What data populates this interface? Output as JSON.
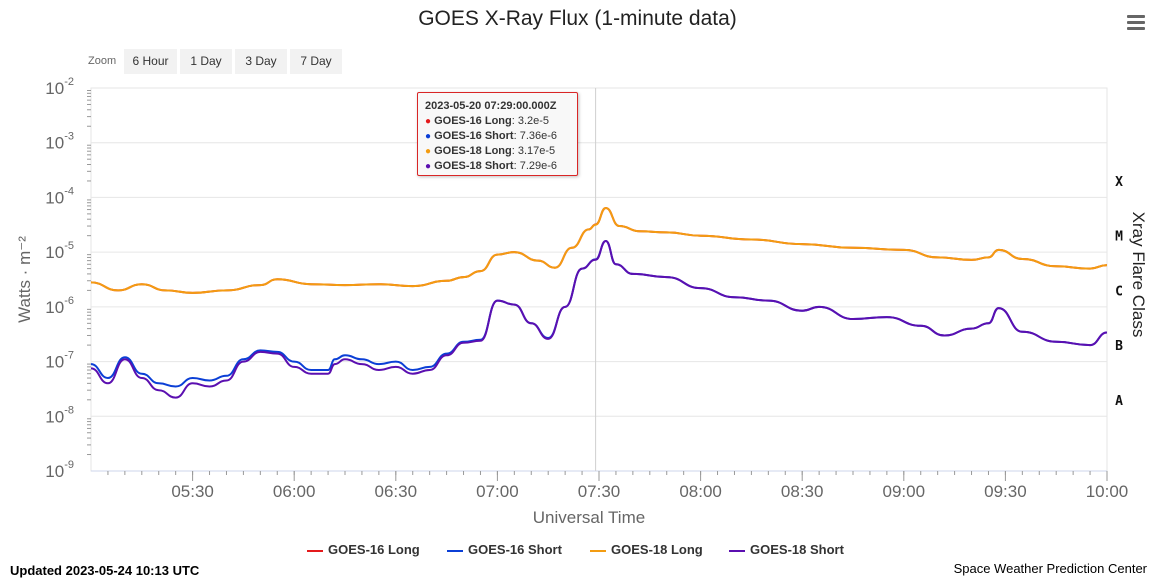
{
  "header": {
    "title": "GOES X-Ray Flux (1-minute data)",
    "menu_icon": "hamburger-menu-icon"
  },
  "zoom": {
    "label": "Zoom",
    "buttons": [
      "6 Hour",
      "1 Day",
      "3 Day",
      "7 Day"
    ]
  },
  "tooltip": {
    "title": "2023-05-20 07:29:00.000Z",
    "rows": [
      {
        "name": "GOES-16 Long",
        "value": "3.2e-5",
        "color": "#e41a1c"
      },
      {
        "name": "GOES-16 Short",
        "value": "7.36e-6",
        "color": "#0b3fd6"
      },
      {
        "name": "GOES-18 Long",
        "value": "3.17e-5",
        "color": "#f39c12"
      },
      {
        "name": "GOES-18 Short",
        "value": "7.29e-6",
        "color": "#5b0fb0"
      }
    ]
  },
  "footer": {
    "updated": "Updated 2023-05-24 10:13 UTC",
    "credit": "Space Weather Prediction Center"
  },
  "chart_data": {
    "type": "line",
    "title": "GOES X-Ray Flux (1-minute data)",
    "xlabel": "Universal Time",
    "ylabel": "Watts · m⁻²",
    "y2label": "Xray Flare Class",
    "yscale": "log",
    "ylim": [
      1e-09,
      0.01
    ],
    "xlim": [
      "05:00",
      "10:00"
    ],
    "x_ticks": [
      "05:30",
      "06:00",
      "06:30",
      "07:00",
      "07:30",
      "08:00",
      "08:30",
      "09:00",
      "09:30",
      "10:00"
    ],
    "y_ticks": [
      {
        "base": "10",
        "exp": "-9",
        "value": 1e-09
      },
      {
        "base": "10",
        "exp": "-8",
        "value": 1e-08
      },
      {
        "base": "10",
        "exp": "-7",
        "value": 1e-07
      },
      {
        "base": "10",
        "exp": "-6",
        "value": 1e-06
      },
      {
        "base": "10",
        "exp": "-5",
        "value": 1e-05
      },
      {
        "base": "10",
        "exp": "-4",
        "value": 0.0001
      },
      {
        "base": "10",
        "exp": "-3",
        "value": 0.001
      },
      {
        "base": "10",
        "exp": "-2",
        "value": 0.01
      }
    ],
    "flare_classes": [
      {
        "label": "X",
        "value": 0.0002
      },
      {
        "label": "M",
        "value": 2e-05
      },
      {
        "label": "C",
        "value": 2e-06
      },
      {
        "label": "B",
        "value": 2e-07
      },
      {
        "label": "A",
        "value": 2e-08
      }
    ],
    "crosshair_x": "07:29",
    "grid": true,
    "legend_position": "bottom-center",
    "series": [
      {
        "name": "GOES-16 Long",
        "color": "#e41a1c",
        "points": [
          [
            "05:00",
            2.8e-06
          ],
          [
            "05:08",
            2e-06
          ],
          [
            "05:15",
            2.6e-06
          ],
          [
            "05:22",
            2e-06
          ],
          [
            "05:30",
            1.8e-06
          ],
          [
            "05:40",
            2e-06
          ],
          [
            "05:50",
            2.5e-06
          ],
          [
            "05:55",
            3.2e-06
          ],
          [
            "06:05",
            2.6e-06
          ],
          [
            "06:15",
            2.5e-06
          ],
          [
            "06:25",
            2.6e-06
          ],
          [
            "06:35",
            2.4e-06
          ],
          [
            "06:45",
            3e-06
          ],
          [
            "06:50",
            3.5e-06
          ],
          [
            "06:55",
            4.5e-06
          ],
          [
            "07:00",
            9e-06
          ],
          [
            "07:05",
            1e-05
          ],
          [
            "07:12",
            7e-06
          ],
          [
            "07:17",
            5.2e-06
          ],
          [
            "07:22",
            1.2e-05
          ],
          [
            "07:27",
            2.6e-05
          ],
          [
            "07:29",
            3.2e-05
          ],
          [
            "07:32",
            6.4e-05
          ],
          [
            "07:36",
            3e-05
          ],
          [
            "07:42",
            2.4e-05
          ],
          [
            "07:50",
            2.3e-05
          ],
          [
            "08:00",
            2e-05
          ],
          [
            "08:15",
            1.7e-05
          ],
          [
            "08:30",
            1.4e-05
          ],
          [
            "08:45",
            1.2e-05
          ],
          [
            "09:00",
            1.1e-05
          ],
          [
            "09:10",
            8e-06
          ],
          [
            "09:20",
            7.2e-06
          ],
          [
            "09:25",
            8e-06
          ],
          [
            "09:28",
            1.1e-05
          ],
          [
            "09:35",
            7.5e-06
          ],
          [
            "09:45",
            5.5e-06
          ],
          [
            "09:55",
            5e-06
          ],
          [
            "10:00",
            5.8e-06
          ]
        ]
      },
      {
        "name": "GOES-16 Short",
        "color": "#0b3fd6",
        "points": [
          [
            "05:00",
            9e-08
          ],
          [
            "05:05",
            5e-08
          ],
          [
            "05:10",
            1.2e-07
          ],
          [
            "05:15",
            6e-08
          ],
          [
            "05:20",
            4e-08
          ],
          [
            "05:25",
            3.5e-08
          ],
          [
            "05:30",
            5e-08
          ],
          [
            "05:35",
            4.5e-08
          ],
          [
            "05:40",
            5.5e-08
          ],
          [
            "05:45",
            1.1e-07
          ],
          [
            "05:50",
            1.6e-07
          ],
          [
            "05:55",
            1.5e-07
          ],
          [
            "06:00",
            1e-07
          ],
          [
            "06:05",
            7e-08
          ],
          [
            "06:10",
            7e-08
          ],
          [
            "06:12",
            1.1e-07
          ],
          [
            "06:15",
            1.3e-07
          ],
          [
            "06:20",
            1.1e-07
          ],
          [
            "06:25",
            9e-08
          ],
          [
            "06:30",
            1e-07
          ],
          [
            "06:35",
            7e-08
          ],
          [
            "06:40",
            8e-08
          ],
          [
            "06:45",
            1.4e-07
          ],
          [
            "06:50",
            2.3e-07
          ],
          [
            "06:55",
            2.5e-07
          ],
          [
            "07:00",
            1.3e-06
          ],
          [
            "07:05",
            1.1e-06
          ],
          [
            "07:10",
            5e-07
          ],
          [
            "07:15",
            2.7e-07
          ],
          [
            "07:20",
            1e-06
          ],
          [
            "07:25",
            5e-06
          ],
          [
            "07:29",
            7.36e-06
          ],
          [
            "07:32",
            1.6e-05
          ],
          [
            "07:35",
            6e-06
          ],
          [
            "07:40",
            4e-06
          ],
          [
            "07:50",
            3.5e-06
          ],
          [
            "08:00",
            2.2e-06
          ],
          [
            "08:10",
            1.5e-06
          ],
          [
            "08:20",
            1.3e-06
          ],
          [
            "08:30",
            8.5e-07
          ],
          [
            "08:35",
            1e-06
          ],
          [
            "08:45",
            6e-07
          ],
          [
            "08:55",
            6.5e-07
          ],
          [
            "09:05",
            4.5e-07
          ],
          [
            "09:12",
            3e-07
          ],
          [
            "09:20",
            4e-07
          ],
          [
            "09:25",
            5e-07
          ],
          [
            "09:28",
            9.5e-07
          ],
          [
            "09:35",
            3.5e-07
          ],
          [
            "09:45",
            2.3e-07
          ],
          [
            "09:55",
            2e-07
          ],
          [
            "10:00",
            3.4e-07
          ]
        ]
      },
      {
        "name": "GOES-18 Long",
        "color": "#f39c12",
        "points": [
          [
            "05:00",
            2.8e-06
          ],
          [
            "05:08",
            2e-06
          ],
          [
            "05:15",
            2.6e-06
          ],
          [
            "05:22",
            2e-06
          ],
          [
            "05:30",
            1.8e-06
          ],
          [
            "05:40",
            2e-06
          ],
          [
            "05:50",
            2.5e-06
          ],
          [
            "05:55",
            3.2e-06
          ],
          [
            "06:05",
            2.6e-06
          ],
          [
            "06:15",
            2.5e-06
          ],
          [
            "06:25",
            2.6e-06
          ],
          [
            "06:35",
            2.4e-06
          ],
          [
            "06:45",
            3e-06
          ],
          [
            "06:50",
            3.5e-06
          ],
          [
            "06:55",
            4.5e-06
          ],
          [
            "07:00",
            9e-06
          ],
          [
            "07:05",
            1e-05
          ],
          [
            "07:12",
            7e-06
          ],
          [
            "07:17",
            5.2e-06
          ],
          [
            "07:22",
            1.2e-05
          ],
          [
            "07:27",
            2.6e-05
          ],
          [
            "07:29",
            3.17e-05
          ],
          [
            "07:32",
            6.4e-05
          ],
          [
            "07:36",
            3e-05
          ],
          [
            "07:42",
            2.4e-05
          ],
          [
            "07:50",
            2.3e-05
          ],
          [
            "08:00",
            2e-05
          ],
          [
            "08:15",
            1.7e-05
          ],
          [
            "08:30",
            1.4e-05
          ],
          [
            "08:45",
            1.2e-05
          ],
          [
            "09:00",
            1.1e-05
          ],
          [
            "09:10",
            8e-06
          ],
          [
            "09:20",
            7.2e-06
          ],
          [
            "09:25",
            8e-06
          ],
          [
            "09:28",
            1.1e-05
          ],
          [
            "09:35",
            7.5e-06
          ],
          [
            "09:45",
            5.5e-06
          ],
          [
            "09:55",
            5e-06
          ],
          [
            "10:00",
            5.8e-06
          ]
        ]
      },
      {
        "name": "GOES-18 Short",
        "color": "#5b0fb0",
        "points": [
          [
            "05:00",
            7.5e-08
          ],
          [
            "05:05",
            4e-08
          ],
          [
            "05:10",
            1.1e-07
          ],
          [
            "05:15",
            5e-08
          ],
          [
            "05:20",
            3e-08
          ],
          [
            "05:25",
            2.2e-08
          ],
          [
            "05:30",
            4e-08
          ],
          [
            "05:35",
            3.5e-08
          ],
          [
            "05:40",
            4.5e-08
          ],
          [
            "05:45",
            1e-07
          ],
          [
            "05:50",
            1.5e-07
          ],
          [
            "05:55",
            1.4e-07
          ],
          [
            "06:00",
            8e-08
          ],
          [
            "06:05",
            6e-08
          ],
          [
            "06:10",
            6e-08
          ],
          [
            "06:12",
            9e-08
          ],
          [
            "06:15",
            1.1e-07
          ],
          [
            "06:20",
            9e-08
          ],
          [
            "06:25",
            7e-08
          ],
          [
            "06:30",
            8e-08
          ],
          [
            "06:35",
            6e-08
          ],
          [
            "06:40",
            7e-08
          ],
          [
            "06:45",
            1.3e-07
          ],
          [
            "06:50",
            2.2e-07
          ],
          [
            "06:55",
            2.4e-07
          ],
          [
            "07:00",
            1.3e-06
          ],
          [
            "07:05",
            1.1e-06
          ],
          [
            "07:10",
            5e-07
          ],
          [
            "07:15",
            2.6e-07
          ],
          [
            "07:20",
            1e-06
          ],
          [
            "07:25",
            5e-06
          ],
          [
            "07:29",
            7.29e-06
          ],
          [
            "07:32",
            1.6e-05
          ],
          [
            "07:35",
            6e-06
          ],
          [
            "07:40",
            4e-06
          ],
          [
            "07:50",
            3.5e-06
          ],
          [
            "08:00",
            2.2e-06
          ],
          [
            "08:10",
            1.5e-06
          ],
          [
            "08:20",
            1.3e-06
          ],
          [
            "08:30",
            8.5e-07
          ],
          [
            "08:35",
            1e-06
          ],
          [
            "08:45",
            6e-07
          ],
          [
            "08:55",
            6.5e-07
          ],
          [
            "09:05",
            4.5e-07
          ],
          [
            "09:12",
            3e-07
          ],
          [
            "09:20",
            4e-07
          ],
          [
            "09:25",
            5e-07
          ],
          [
            "09:28",
            9.5e-07
          ],
          [
            "09:35",
            3.5e-07
          ],
          [
            "09:45",
            2.3e-07
          ],
          [
            "09:55",
            2e-07
          ],
          [
            "10:00",
            3.4e-07
          ]
        ]
      }
    ]
  }
}
